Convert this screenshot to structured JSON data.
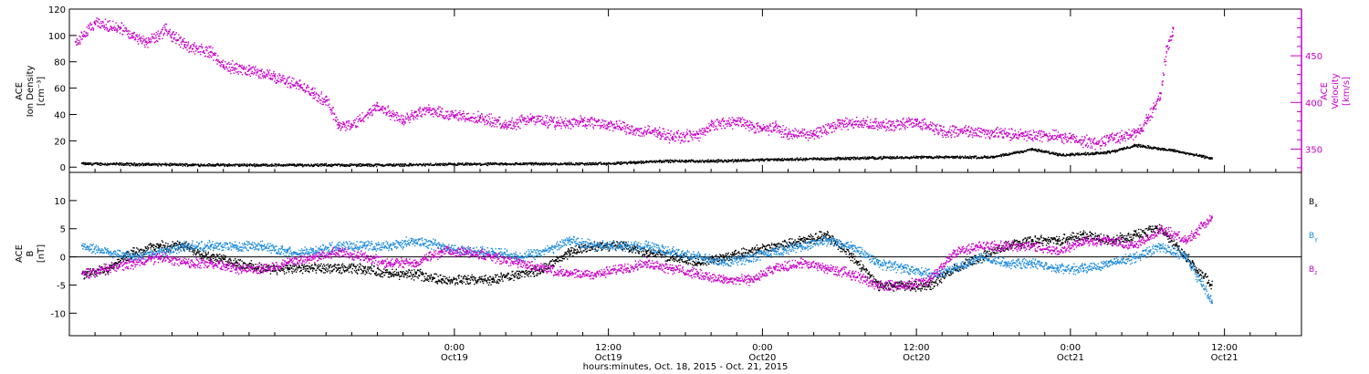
{
  "colors": {
    "density": "#000000",
    "velocity": "#c800c8",
    "bx": "#000000",
    "by": "#1e8cdc",
    "bz": "#c800c8"
  },
  "chart_data": [
    {
      "type": "scatter",
      "panel": "top",
      "ylabel_lines": [
        "ACE",
        "Ion Density",
        "[cm⁻³]"
      ],
      "ylim": [
        -4,
        120
      ],
      "yticks": [
        0,
        20,
        40,
        60,
        80,
        100,
        120
      ],
      "y2label_lines": [
        "ACE",
        "Velocity",
        "[km/s]"
      ],
      "y2lim": [
        325,
        500
      ],
      "y2ticks": [
        350,
        400,
        450
      ],
      "grid": false,
      "series": [
        {
          "key": "density",
          "axis": "left",
          "x": [
            -29,
            -24,
            -18,
            -12,
            -6,
            0,
            6,
            12,
            14,
            16,
            18,
            20,
            24,
            30,
            36,
            42,
            45,
            46,
            47,
            48,
            50,
            51,
            52,
            53,
            56,
            59
          ],
          "y": [
            3,
            2.5,
            2,
            2,
            2,
            2.5,
            3,
            3,
            4,
            5,
            5,
            5,
            6,
            7,
            8,
            8,
            14,
            12,
            10,
            10,
            11,
            12,
            14,
            17,
            13,
            7
          ]
        },
        {
          "key": "velocity",
          "axis": "right",
          "x": [
            -29.5,
            -28,
            -26,
            -25,
            -24,
            -22.5,
            -22,
            -21,
            -19,
            -18,
            -16,
            -14,
            -12,
            -11,
            -10,
            -9,
            -8,
            -6,
            -4,
            -3,
            -2,
            0,
            2,
            4,
            6,
            8,
            10,
            12,
            14,
            16,
            17,
            19,
            20,
            22,
            24,
            25,
            26,
            27,
            28,
            30,
            32,
            34,
            36,
            38,
            40,
            42,
            44,
            46,
            48,
            50,
            51,
            52,
            53,
            53.5,
            54,
            54.5,
            55,
            55.5,
            56
          ],
          "y": [
            465,
            485,
            480,
            470,
            465,
            478,
            473,
            462,
            454,
            440,
            435,
            428,
            418,
            410,
            402,
            376,
            376,
            396,
            382,
            390,
            392,
            386,
            384,
            376,
            383,
            378,
            380,
            377,
            370,
            368,
            363,
            366,
            376,
            380,
            372,
            374,
            366,
            368,
            366,
            378,
            378,
            375,
            380,
            370,
            370,
            368,
            365,
            365,
            362,
            356,
            362,
            364,
            368,
            372,
            384,
            395,
            410,
            460,
            480
          ]
        }
      ]
    },
    {
      "type": "scatter",
      "panel": "bottom",
      "ylabel_lines": [
        "ACE",
        "B",
        "[nT]"
      ],
      "ylim": [
        -14,
        15
      ],
      "yticks": [
        -10,
        -5,
        0,
        5,
        10
      ],
      "zero_line": true,
      "grid": false,
      "xlabel": "hours:minutes, Oct. 18, 2015 - Oct. 21, 2015",
      "xlim": [
        -30,
        66
      ],
      "xticks": [
        {
          "x": 0,
          "line1": "0:00",
          "line2": "Oct19"
        },
        {
          "x": 12,
          "line1": "12:00",
          "line2": "Oct19"
        },
        {
          "x": 24,
          "line1": "0:00",
          "line2": "Oct20"
        },
        {
          "x": 36,
          "line1": "12:00",
          "line2": "Oct20"
        },
        {
          "x": 48,
          "line1": "0:00",
          "line2": "Oct21"
        },
        {
          "x": 60,
          "line1": "12:00",
          "line2": "Oct21"
        }
      ],
      "legend_position": "right",
      "series": [
        {
          "key": "bx",
          "name": "B",
          "subscript": "x",
          "x": [
            -29,
            -27,
            -25,
            -23,
            -21,
            -19,
            -17,
            -15,
            -13,
            -11,
            -9,
            -7,
            -5,
            -3,
            -1,
            1,
            3,
            5,
            7,
            9,
            11,
            13,
            15,
            17,
            19,
            21,
            23,
            25,
            27,
            29,
            31,
            33,
            35,
            37,
            39,
            41,
            43,
            45,
            47,
            49,
            51,
            53,
            55,
            57,
            59
          ],
          "y": [
            -3,
            -2,
            1,
            2,
            2,
            0,
            -1,
            -2,
            -2,
            -2,
            -2,
            -2,
            -3,
            -3,
            -4,
            -4,
            -4,
            -3,
            -2,
            1,
            2,
            2,
            1,
            0,
            -1,
            0,
            1,
            2,
            3,
            4,
            0,
            -5,
            -5,
            -5,
            -2,
            0,
            2,
            3,
            3,
            4,
            3,
            4,
            5,
            0,
            -5
          ]
        },
        {
          "key": "by",
          "name": "B",
          "subscript": "y",
          "x": [
            -29,
            -27,
            -25,
            -23,
            -21,
            -19,
            -17,
            -15,
            -13,
            -11,
            -9,
            -7,
            -5,
            -3,
            -1,
            1,
            3,
            5,
            7,
            9,
            11,
            13,
            15,
            17,
            19,
            21,
            23,
            25,
            27,
            29,
            31,
            33,
            35,
            37,
            39,
            41,
            43,
            45,
            47,
            49,
            51,
            53,
            55,
            57,
            59
          ],
          "y": [
            2,
            1,
            0,
            1,
            2,
            2,
            2,
            2,
            1,
            1,
            2,
            2,
            2,
            3,
            2,
            1,
            1,
            0,
            1,
            3,
            2,
            2,
            2,
            1,
            0,
            -1,
            0,
            1,
            2,
            3,
            2,
            -1,
            -2,
            -3,
            -2,
            0,
            -1,
            -1,
            -2,
            -2,
            -1,
            0,
            2,
            0,
            -8
          ]
        },
        {
          "key": "bz",
          "name": "B",
          "subscript": "z",
          "x": [
            -29,
            -27,
            -25,
            -23,
            -21,
            -19,
            -17,
            -15,
            -13,
            -11,
            -9,
            -7,
            -5,
            -3,
            -1,
            1,
            3,
            5,
            7,
            9,
            11,
            13,
            15,
            17,
            19,
            21,
            23,
            25,
            27,
            29,
            31,
            33,
            35,
            37,
            39,
            41,
            43,
            45,
            47,
            49,
            51,
            53,
            55,
            57,
            59
          ],
          "y": [
            -3,
            -2,
            -1,
            0,
            -1,
            -1,
            -2,
            -2,
            -1,
            0,
            1,
            0,
            -1,
            -1,
            1,
            1,
            0,
            -1,
            -2,
            -3,
            -3,
            -2,
            -1,
            -2,
            -3,
            -4,
            -4,
            -2,
            -1,
            -2,
            -3,
            -5,
            -5,
            -4,
            1,
            2,
            2,
            2,
            1,
            3,
            3,
            2,
            5,
            3,
            7
          ]
        }
      ]
    }
  ]
}
